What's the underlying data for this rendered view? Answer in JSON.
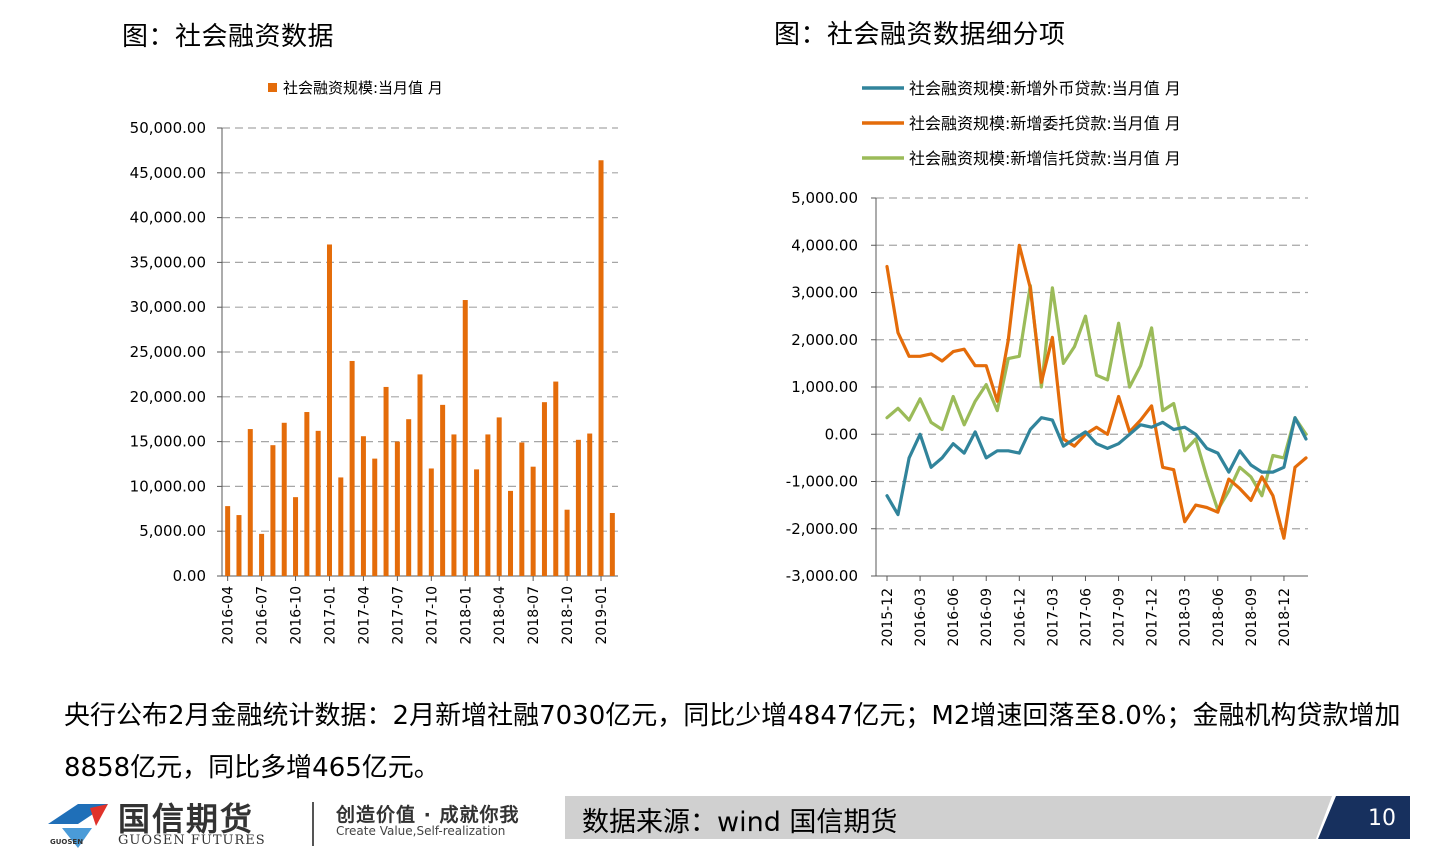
{
  "left_title": "图：社会融资数据",
  "right_title": "图：社会融资数据细分项",
  "description": "央行公布2月金融统计数据：2月新增社融7030亿元，同比少增4847亿元；M2增速回落至8.0%；金融机构贷款增加8858亿元，同比多增465亿元。",
  "footer": {
    "brand_cn": "国信期货",
    "brand_en": "GUOSEN FUTURES",
    "brand_small": "GUOSEN",
    "slogan_cn": "创造价值 · 成就你我",
    "slogan_en": "Create Value,Self-realization",
    "source": "数据来源：wind 国信期货",
    "page_number": "10"
  },
  "colors": {
    "orange": "#E46C0A",
    "teal": "#31849B",
    "green": "#9BBB59",
    "grid": "#A6A6A6",
    "footer_bar": "#D0D0D0",
    "footer_dark": "#17305E"
  },
  "chart_data": [
    {
      "type": "bar",
      "series": [
        {
          "name": "社会融资规模:当月值 月",
          "color": "#E46C0A",
          "values": [
            7800,
            6800,
            16400,
            4700,
            14600,
            17100,
            8800,
            18300,
            16200,
            37000,
            11000,
            24000,
            15600,
            13100,
            21100,
            15000,
            17500,
            22500,
            12000,
            19100,
            15800,
            30800,
            11900,
            15800,
            17700,
            9500,
            14900,
            12200,
            19400,
            21700,
            7400,
            15200,
            15900,
            46400,
            7030
          ]
        }
      ],
      "x_tick_labels": [
        "2016-04",
        "2016-07",
        "2016-10",
        "2017-01",
        "2017-04",
        "2017-07",
        "2017-10",
        "2018-01",
        "2018-04",
        "2018-07",
        "2018-10",
        "2019-01"
      ],
      "y_tick_labels": [
        "50,000.00",
        "45,000.00",
        "40,000.00",
        "35,000.00",
        "30,000.00",
        "25,000.00",
        "20,000.00",
        "15,000.00",
        "10,000.00",
        "5,000.00",
        "0.00"
      ],
      "ylim": [
        0,
        50000
      ],
      "grid": true,
      "legend": "top-center"
    },
    {
      "type": "line",
      "series": [
        {
          "name": "社会融资规模:新增外币贷款:当月值 月",
          "color": "#31849B",
          "values": [
            -1300,
            -1700,
            -500,
            0,
            -700,
            -500,
            -200,
            -400,
            50,
            -500,
            -350,
            -350,
            -400,
            100,
            350,
            300,
            -250,
            -100,
            50,
            -200,
            -300,
            -200,
            0,
            200,
            150,
            250,
            100,
            150,
            0,
            -300,
            -400,
            -800,
            -350,
            -650,
            -800,
            -800,
            -700,
            350,
            -100
          ]
        },
        {
          "name": "社会融资规模:新增委托贷款:当月值 月",
          "color": "#E46C0A",
          "values": [
            3550,
            2150,
            1650,
            1650,
            1700,
            1550,
            1750,
            1800,
            1450,
            1450,
            700,
            2000,
            4000,
            3100,
            1100,
            2050,
            -100,
            -250,
            0,
            150,
            0,
            800,
            50,
            300,
            600,
            -700,
            -750,
            -1850,
            -1500,
            -1550,
            -1650,
            -950,
            -1150,
            -1400,
            -900,
            -1300,
            -2200,
            -700,
            -500
          ]
        },
        {
          "name": "社会融资规模:新增信托贷款:当月值 月",
          "color": "#9BBB59",
          "values": [
            350,
            550,
            300,
            750,
            250,
            100,
            800,
            200,
            700,
            1050,
            500,
            1600,
            1650,
            3150,
            1000,
            3100,
            1500,
            1850,
            2500,
            1250,
            1150,
            2350,
            1000,
            1450,
            2250,
            500,
            650,
            -350,
            -100,
            -900,
            -1600,
            -1200,
            -700,
            -900,
            -1300,
            -450,
            -500,
            350,
            0
          ]
        }
      ],
      "x_tick_labels": [
        "2015-12",
        "2016-03",
        "2016-06",
        "2016-09",
        "2016-12",
        "2017-03",
        "2017-06",
        "2017-09",
        "2017-12",
        "2018-03",
        "2018-06",
        "2018-09",
        "2018-12"
      ],
      "y_tick_labels": [
        "5,000.00",
        "4,000.00",
        "3,000.00",
        "2,000.00",
        "1,000.00",
        "0.00",
        "-1,000.00",
        "-2,000.00",
        "-3,000.00"
      ],
      "ylim": [
        -3000,
        5000
      ],
      "grid": true,
      "legend": "top-left"
    }
  ]
}
